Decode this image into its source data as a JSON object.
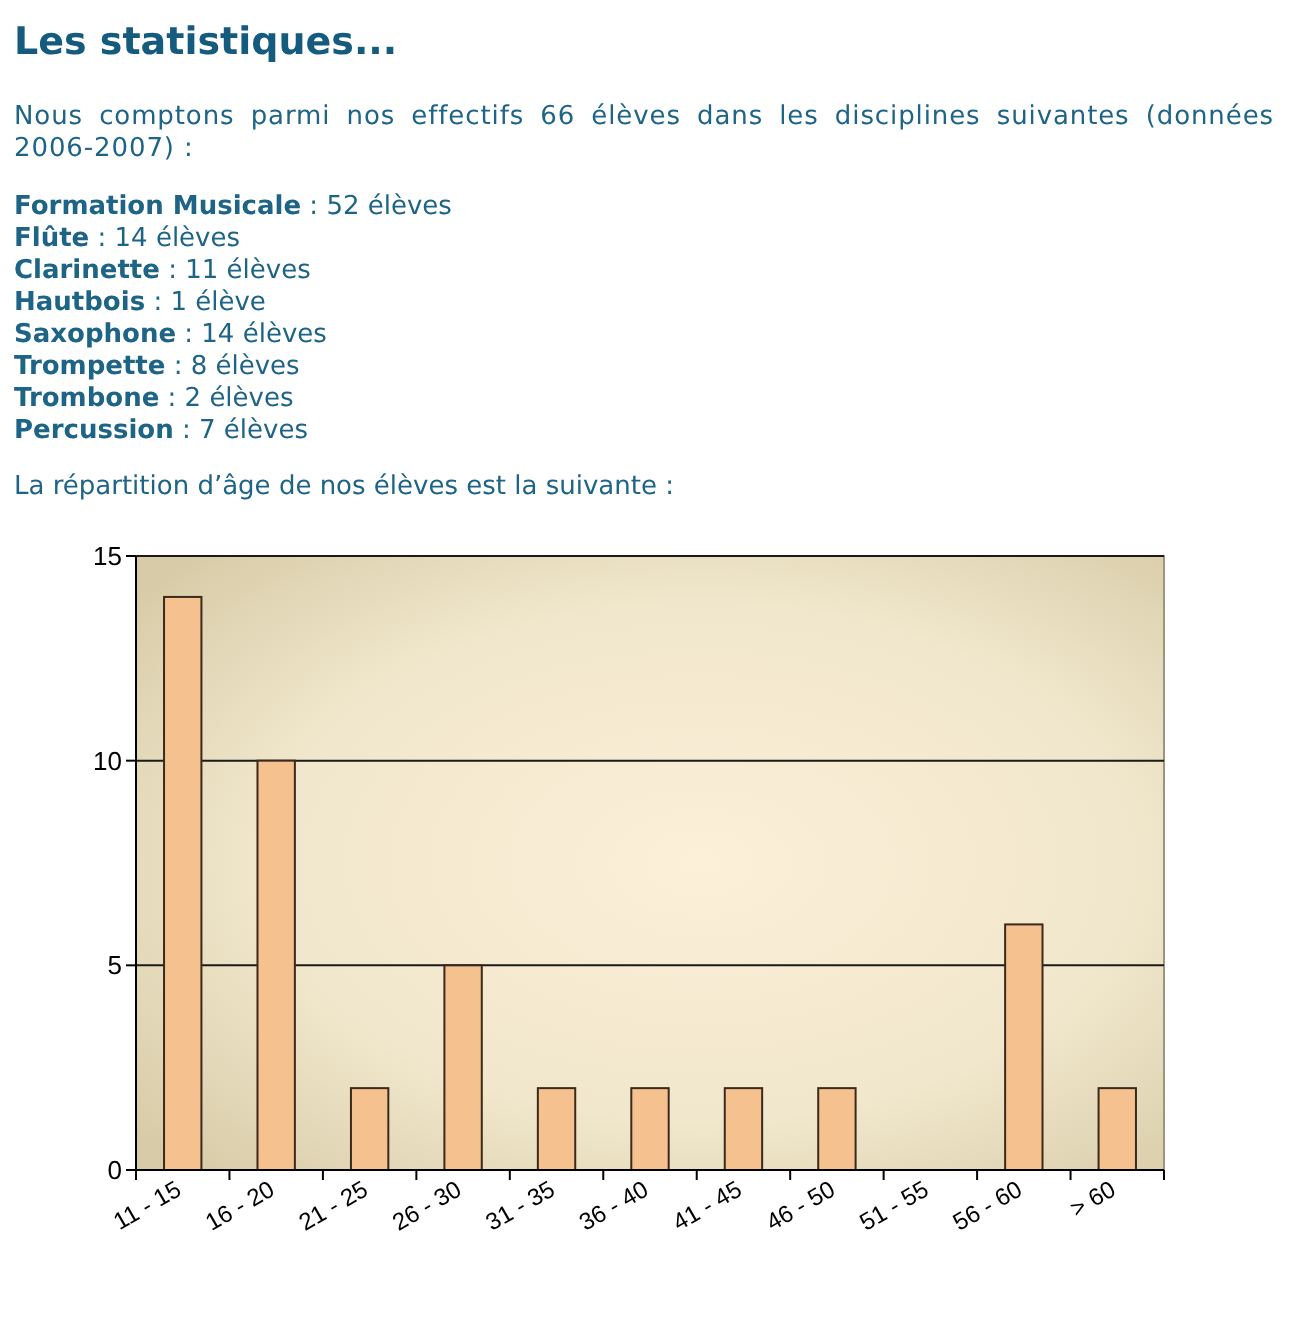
{
  "chart_data": {
    "type": "bar",
    "title": "Les statistiques...",
    "subtitle": "Nous comptons parmi nos effectifs 66 élèves dans les disciplines suivantes (données 2006-2007) :",
    "annotations": [
      "Formation Musicale : 52 élèves",
      "Flûte : 14 élèves",
      "Clarinette : 11 élèves",
      "Hautbois : 1 élève",
      "Saxophone : 14 élèves",
      "Trompette : 8 élèves",
      "Trombone : 2 élèves",
      "Percussion : 7 élèves",
      "La répartition d’âge de nos élèves est la suivante :"
    ],
    "categories": [
      "11 - 15",
      "16 - 20",
      "21 - 25",
      "26 - 30",
      "31 - 35",
      "36 - 40",
      "41 - 45",
      "46 - 50",
      "51 - 55",
      "56 - 60",
      "> 60"
    ],
    "values": [
      14,
      10,
      2,
      5,
      2,
      2,
      2,
      2,
      0,
      6,
      2
    ],
    "color": "#f5c18e",
    "ylim": [
      0,
      15
    ],
    "yticks": [
      0,
      5,
      10,
      15
    ],
    "grid": "y"
  }
}
